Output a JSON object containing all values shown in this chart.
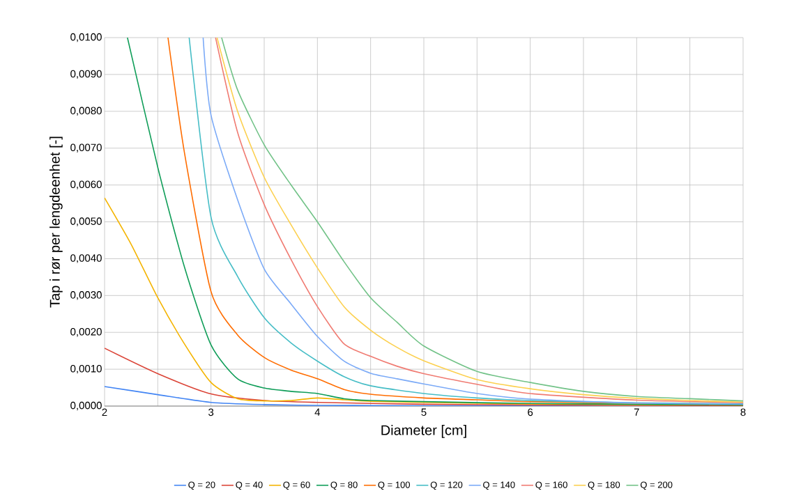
{
  "chart_data": {
    "type": "line",
    "xlabel": "Diameter [cm]",
    "ylabel": "Tap i rør per lengdeenhet [-]",
    "xlim": [
      2,
      8
    ],
    "ylim": [
      0,
      0.01
    ],
    "xticks": [
      2,
      {
        "value": 2.5,
        "label": null
      },
      3,
      {
        "value": 3.5,
        "label": null
      },
      4,
      {
        "value": 4.5,
        "label": null
      },
      5,
      {
        "value": 5.5,
        "label": null
      },
      6,
      {
        "value": 6.5,
        "label": null
      },
      7,
      {
        "value": 7.5,
        "label": null
      },
      8
    ],
    "yticks": [
      {
        "value": 0,
        "label": "0,0000"
      },
      {
        "value": 0.001,
        "label": "0,0010"
      },
      {
        "value": 0.002,
        "label": "0,0020"
      },
      {
        "value": 0.003,
        "label": "0,0030"
      },
      {
        "value": 0.004,
        "label": "0,0040"
      },
      {
        "value": 0.005,
        "label": "0,0050"
      },
      {
        "value": 0.006,
        "label": "0,0060"
      },
      {
        "value": 0.007,
        "label": "0,0070"
      },
      {
        "value": 0.008,
        "label": "0,0080"
      },
      {
        "value": 0.009,
        "label": "0,0090"
      },
      {
        "value": 0.01,
        "label": "0,0100"
      }
    ],
    "grid": true,
    "legend": "bottom",
    "line_style": "solid",
    "series": [
      {
        "name": "Q = 20",
        "color": "#4285f4",
        "x": [
          2,
          2.5,
          3,
          3.5,
          4,
          5,
          6,
          7,
          8
        ],
        "values": [
          0.00053,
          0.00031,
          0.0001,
          4e-05,
          2e-05,
          1e-05,
          1e-05,
          0,
          0
        ]
      },
      {
        "name": "Q = 40",
        "color": "#db4437",
        "x": [
          2,
          2.5,
          3,
          3.5,
          4,
          5,
          6,
          7,
          8
        ],
        "values": [
          0.00157,
          0.00088,
          0.00033,
          0.00015,
          0.0001,
          5e-05,
          3e-05,
          2e-05,
          1e-05
        ]
      },
      {
        "name": "Q = 60",
        "color": "#f4b400",
        "x": [
          2,
          2.25,
          2.5,
          2.75,
          3,
          3.25,
          3.5,
          3.75,
          4,
          4.25,
          4.5,
          5,
          6,
          7,
          8
        ],
        "values": [
          0.00565,
          0.00439,
          0.00294,
          0.00169,
          0.00064,
          0.0002,
          0.00014,
          0.00015,
          0.00022,
          0.00017,
          0.00013,
          0.0001,
          6e-05,
          4e-05,
          3e-05
        ]
      },
      {
        "name": "Q = 80",
        "color": "#0f9d58",
        "x": [
          2.215,
          2.5,
          2.75,
          3,
          3.25,
          3.5,
          3.75,
          4,
          4.25,
          4.5,
          5,
          6,
          7,
          8
        ],
        "values": [
          0.01,
          0.00648,
          0.00378,
          0.00166,
          0.00074,
          0.00049,
          0.0004,
          0.00034,
          0.0002,
          0.00015,
          0.00012,
          7e-05,
          5e-05,
          3e-05
        ]
      },
      {
        "name": "Q = 100",
        "color": "#ff6d01",
        "x": [
          2.596,
          2.75,
          3,
          3.25,
          3.5,
          3.75,
          4,
          4.25,
          4.5,
          5,
          5.5,
          6,
          7,
          8
        ],
        "values": [
          0.01,
          0.00689,
          0.00311,
          0.00193,
          0.00132,
          0.00098,
          0.00074,
          0.00045,
          0.00032,
          0.00022,
          0.00017,
          0.00012,
          8e-05,
          5e-05
        ]
      },
      {
        "name": "Q = 120",
        "color": "#46bdc6",
        "x": [
          2.795,
          3,
          3.25,
          3.5,
          3.75,
          4,
          4.25,
          4.5,
          5,
          5.5,
          6,
          7,
          8
        ],
        "values": [
          0.01,
          0.00513,
          0.00352,
          0.0024,
          0.00172,
          0.00122,
          0.0008,
          0.00055,
          0.00034,
          0.00022,
          0.00015,
          9e-05,
          6e-05
        ]
      },
      {
        "name": "Q = 140",
        "color": "#7baaf7",
        "x": [
          2.926,
          3,
          3.25,
          3.5,
          3.75,
          4,
          4.25,
          4.5,
          4.75,
          5,
          5.5,
          6,
          7,
          8
        ],
        "values": [
          0.01,
          0.0079,
          0.0056,
          0.00372,
          0.00278,
          0.00189,
          0.00122,
          0.00089,
          0.00074,
          0.0006,
          0.00034,
          0.00019,
          8e-05,
          5e-05
        ]
      },
      {
        "name": "Q = 160",
        "color": "#f07b72",
        "x": [
          3.043,
          3.25,
          3.5,
          3.75,
          4,
          4.25,
          4.5,
          4.75,
          5,
          5.5,
          6,
          7,
          8
        ],
        "values": [
          0.01,
          0.00743,
          0.00547,
          0.00399,
          0.0027,
          0.00169,
          0.00135,
          0.00108,
          0.00088,
          0.00059,
          0.00034,
          0.00016,
          9e-05
        ]
      },
      {
        "name": "Q = 180",
        "color": "#fcd04f",
        "x": [
          3.057,
          3.25,
          3.5,
          3.75,
          4,
          4.25,
          4.5,
          4.75,
          5,
          5.5,
          6,
          6.5,
          7,
          7.5,
          8
        ],
        "values": [
          0.01,
          0.008,
          0.00621,
          0.00493,
          0.00375,
          0.0027,
          0.00206,
          0.00159,
          0.00123,
          0.00072,
          0.00047,
          0.00031,
          0.00021,
          0.00015,
          0.00011
        ]
      },
      {
        "name": "Q = 200",
        "color": "#71c287",
        "x": [
          3.1,
          3.25,
          3.5,
          3.75,
          4,
          4.25,
          4.5,
          4.75,
          5,
          5.5,
          6,
          6.5,
          7,
          7.5,
          8
        ],
        "values": [
          0.01,
          0.00858,
          0.00709,
          0.00601,
          0.005,
          0.00392,
          0.00294,
          0.00227,
          0.00163,
          0.00094,
          0.00064,
          0.0004,
          0.00026,
          0.0002,
          0.00014
        ]
      }
    ]
  }
}
